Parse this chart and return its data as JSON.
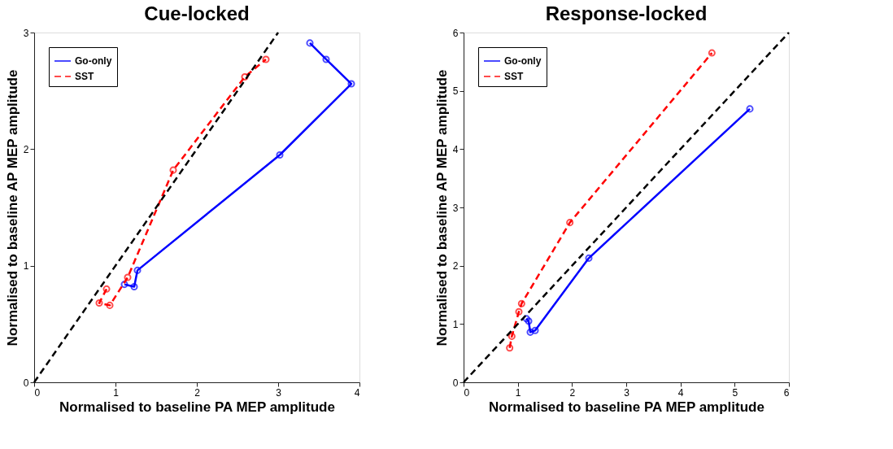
{
  "chart_data": [
    {
      "type": "line",
      "title": "Cue-locked",
      "xlabel": "Normalised to baseline PA MEP amplitude",
      "ylabel": "Normalised to baseline AP MEP amplitude",
      "xlim": [
        0,
        4
      ],
      "ylim": [
        0,
        3
      ],
      "xticks": [
        0,
        1,
        2,
        3,
        4
      ],
      "yticks": [
        0,
        1,
        2,
        3
      ],
      "grid": false,
      "legend": "top left",
      "marker": "circle",
      "series": [
        {
          "name": "Go-only",
          "color": "#0000ff",
          "line_style": "solid",
          "x": [
            1.11,
            1.23,
            1.27,
            3.02,
            3.9,
            3.59,
            3.39
          ],
          "values": [
            0.84,
            0.82,
            0.96,
            1.95,
            2.56,
            2.77,
            2.91
          ]
        },
        {
          "name": "SST",
          "color": "#ff0000",
          "line_style": "dashed",
          "x": [
            0.89,
            0.8,
            0.93,
            1.15,
            1.71,
            2.59,
            2.85
          ],
          "values": [
            0.8,
            0.68,
            0.66,
            0.9,
            1.82,
            2.62,
            2.77
          ]
        },
        {
          "color": "#000000",
          "line_style": "dashed",
          "marker": "none",
          "x": [
            0,
            3
          ],
          "values": [
            0,
            3
          ]
        }
      ]
    },
    {
      "type": "line",
      "title": "Response-locked",
      "xlabel": "Normalised to baseline PA MEP amplitude",
      "ylabel": "Normalised to baseline AP MEP amplitude",
      "xlim": [
        0,
        6
      ],
      "ylim": [
        0,
        6
      ],
      "xticks": [
        0,
        1,
        2,
        3,
        4,
        5,
        6
      ],
      "yticks": [
        0,
        1,
        2,
        3,
        4,
        5,
        6
      ],
      "grid": false,
      "legend": "top left",
      "marker": "circle",
      "series": [
        {
          "name": "Go-only",
          "color": "#0000ff",
          "line_style": "solid",
          "x": [
            1.16,
            1.2,
            1.23,
            1.32,
            2.31,
            5.28
          ],
          "values": [
            1.09,
            1.05,
            0.86,
            0.89,
            2.13,
            4.69
          ]
        },
        {
          "name": "SST",
          "color": "#ff0000",
          "line_style": "dashed",
          "x": [
            0.85,
            0.89,
            1.02,
            1.07,
            1.96,
            4.58
          ],
          "values": [
            0.59,
            0.79,
            1.21,
            1.35,
            2.74,
            5.65
          ]
        },
        {
          "color": "#000000",
          "line_style": "dashed",
          "marker": "none",
          "x": [
            0,
            6
          ],
          "values": [
            0,
            6
          ]
        }
      ]
    }
  ]
}
